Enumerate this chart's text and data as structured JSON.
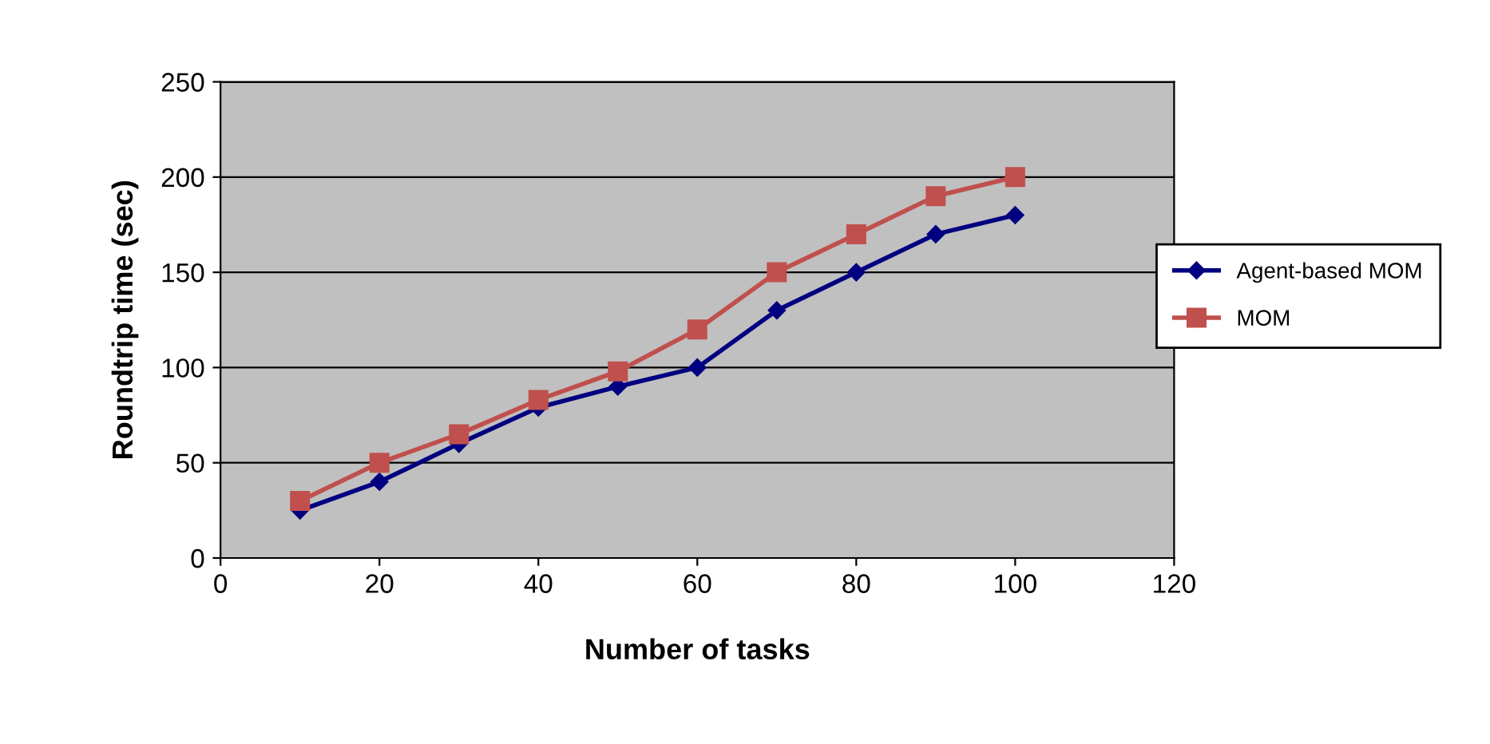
{
  "chart_data": {
    "type": "line",
    "xlabel": "Number of tasks",
    "ylabel": "Roundtrip time (sec)",
    "x": [
      10,
      20,
      30,
      40,
      50,
      60,
      70,
      80,
      90,
      100
    ],
    "series": [
      {
        "name": "Agent-based MOM",
        "color": "#000080",
        "marker": "diamond",
        "values": [
          25,
          40,
          60,
          79,
          90,
          100,
          130,
          150,
          170,
          180
        ]
      },
      {
        "name": "MOM",
        "color": "#c0504d",
        "marker": "square",
        "values": [
          30,
          50,
          65,
          83,
          98,
          120,
          150,
          170,
          190,
          200
        ]
      }
    ],
    "xlim": [
      0,
      120
    ],
    "xticks": [
      0,
      20,
      40,
      60,
      80,
      100,
      120
    ],
    "ylim": [
      0,
      250
    ],
    "yticks": [
      0,
      50,
      100,
      150,
      200,
      250
    ],
    "grid": "y",
    "legend": "right",
    "line_style": "solid"
  }
}
